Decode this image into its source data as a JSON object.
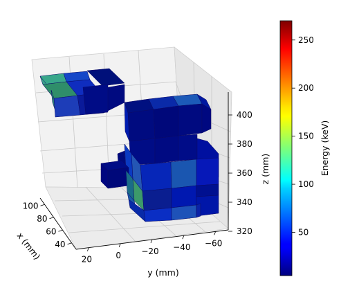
{
  "chart_data": {
    "type": "3d-voxel",
    "x_label": "x (mm)",
    "y_label": "y (mm)",
    "z_label": "z (mm)",
    "x_ticks": [
      40,
      60,
      80,
      100
    ],
    "y_ticks": [
      20,
      0,
      -20,
      -40,
      -60
    ],
    "y_tick_labels": [
      "20",
      "0",
      "−20",
      "−40",
      "−60"
    ],
    "z_ticks": [
      320,
      340,
      360,
      380,
      400
    ],
    "colorbar": {
      "label": "Energy (keV)",
      "ticks": [
        50,
        100,
        150,
        200,
        250
      ],
      "range": [
        5,
        270
      ],
      "colormap": "jet"
    }
  }
}
